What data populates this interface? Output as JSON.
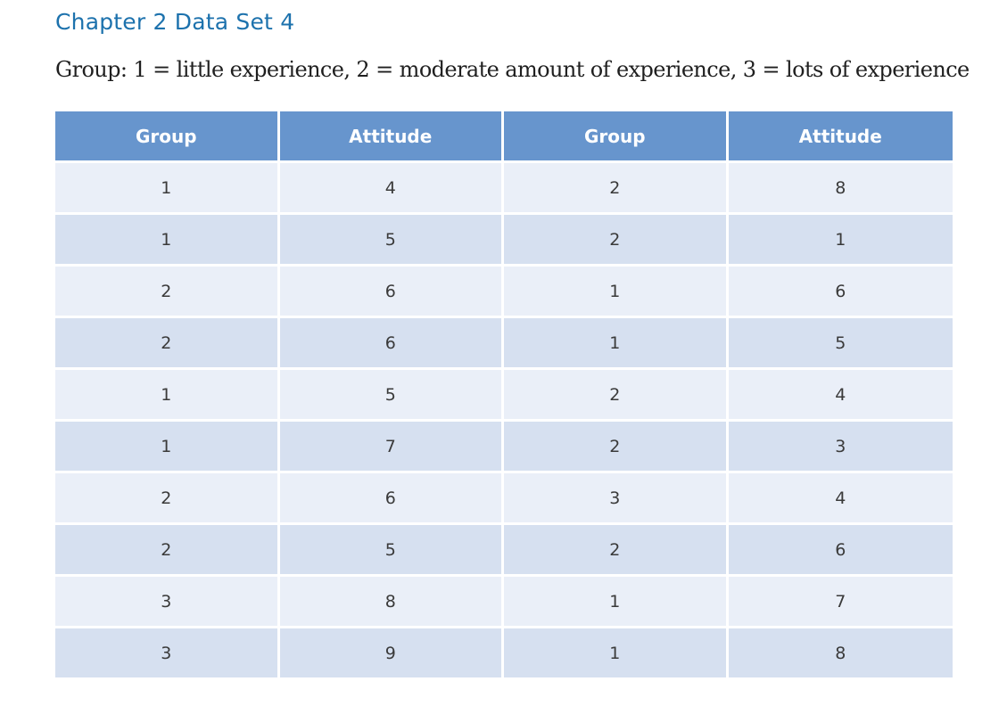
{
  "title": "Chapter 2 Data Set 4",
  "subtitle": "Group: 1 = little experience, 2 = moderate amount of experience, 3 = lots of experience",
  "colors": {
    "title": "#1d72ad",
    "header_bg": "#6795cd",
    "row_light": "#eaeff8",
    "row_dark": "#d6e0f0"
  },
  "table": {
    "headers": [
      "Group",
      "Attitude",
      "Group",
      "Attitude"
    ],
    "rows": [
      [
        "1",
        "4",
        "2",
        "8"
      ],
      [
        "1",
        "5",
        "2",
        "1"
      ],
      [
        "2",
        "6",
        "1",
        "6"
      ],
      [
        "2",
        "6",
        "1",
        "5"
      ],
      [
        "1",
        "5",
        "2",
        "4"
      ],
      [
        "1",
        "7",
        "2",
        "3"
      ],
      [
        "2",
        "6",
        "3",
        "4"
      ],
      [
        "2",
        "5",
        "2",
        "6"
      ],
      [
        "3",
        "8",
        "1",
        "7"
      ],
      [
        "3",
        "9",
        "1",
        "8"
      ]
    ]
  }
}
